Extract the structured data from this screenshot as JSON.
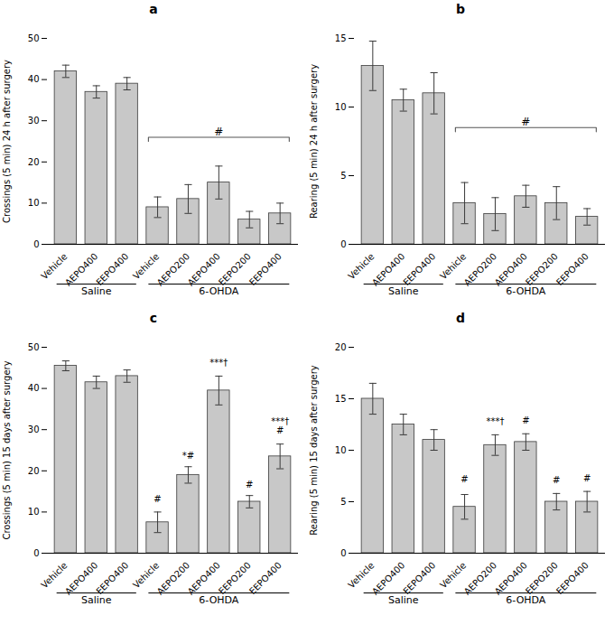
{
  "chart_data": [
    {
      "type": "bar",
      "title": "a",
      "ylabel": "Crossings (5 min) 24 h after surgery",
      "categories": [
        "Vehicle",
        "AEPO400",
        "EEPO400",
        "Vehicle",
        "AEPO200",
        "AEPO400",
        "EEPO200",
        "EEPO400"
      ],
      "values": [
        42.0,
        37.0,
        39.0,
        9.0,
        11.0,
        15.0,
        6.0,
        7.5
      ],
      "errors": [
        1.5,
        1.5,
        1.5,
        2.5,
        3.5,
        4.0,
        2.0,
        2.5
      ],
      "groups": [
        "Saline",
        "Saline",
        "Saline",
        "6-OHDA",
        "6-OHDA",
        "6-OHDA",
        "6-OHDA",
        "6-OHDA"
      ],
      "ylim": [
        0,
        50
      ],
      "yticks": [
        0,
        10,
        20,
        30,
        40,
        50
      ],
      "color": "#c8c8c8",
      "grid": false,
      "annotations": [
        {
          "text": "#",
          "group": "6-OHDA",
          "y": 26
        }
      ]
    },
    {
      "type": "bar",
      "title": "b",
      "ylabel": "Rearing (5 min) 24 h after surgery",
      "categories": [
        "Vehicle",
        "AEPO400",
        "EEPO400",
        "Vehicle",
        "AEPO200",
        "AEPO400",
        "EEPO200",
        "EEPO400"
      ],
      "values": [
        13.0,
        10.5,
        11.0,
        3.0,
        2.2,
        3.5,
        3.0,
        2.0
      ],
      "errors": [
        1.8,
        0.8,
        1.5,
        1.5,
        1.2,
        0.8,
        1.2,
        0.6
      ],
      "groups": [
        "Saline",
        "Saline",
        "Saline",
        "6-OHDA",
        "6-OHDA",
        "6-OHDA",
        "6-OHDA",
        "6-OHDA"
      ],
      "ylim": [
        0,
        15
      ],
      "yticks": [
        0,
        5,
        10,
        15
      ],
      "color": "#c8c8c8",
      "grid": false,
      "annotations": [
        {
          "text": "#",
          "group": "6-OHDA",
          "y": 8.5
        }
      ]
    },
    {
      "type": "bar",
      "title": "c",
      "ylabel": "Crossings (5 min) 15 days after surgery",
      "categories": [
        "Vehicle",
        "AEPO400",
        "EEPO400",
        "Vehicle",
        "AEPO200",
        "AEPO400",
        "EEPO200",
        "EEPO400"
      ],
      "values": [
        45.5,
        41.5,
        43.0,
        7.5,
        19.0,
        39.5,
        12.5,
        23.5
      ],
      "errors": [
        1.2,
        1.5,
        1.5,
        2.5,
        2.0,
        3.5,
        1.5,
        3.0
      ],
      "groups": [
        "Saline",
        "Saline",
        "Saline",
        "6-OHDA",
        "6-OHDA",
        "6-OHDA",
        "6-OHDA",
        "6-OHDA"
      ],
      "ylim": [
        0,
        50
      ],
      "yticks": [
        0,
        10,
        20,
        30,
        40,
        50
      ],
      "color": "#c8c8c8",
      "grid": false,
      "annotations": [
        {
          "text": "#",
          "bar": 3,
          "y": 12.5
        },
        {
          "text": "*#",
          "bar": 4,
          "y": 23
        },
        {
          "text": "***†",
          "bar": 5,
          "y": 45.5
        },
        {
          "text": "#",
          "bar": 6,
          "y": 16
        },
        {
          "text": "***†\n#",
          "bar": 7,
          "y": 29
        }
      ]
    },
    {
      "type": "bar",
      "title": "d",
      "ylabel": "Rearing (5 min) 15 days after surgery",
      "categories": [
        "Vehicle",
        "AEPO400",
        "EEPO400",
        "Vehicle",
        "AEPO200",
        "AEPO400",
        "EEPO200",
        "EEPO400"
      ],
      "values": [
        15.0,
        12.5,
        11.0,
        4.5,
        10.5,
        10.8,
        5.0,
        5.0
      ],
      "errors": [
        1.5,
        1.0,
        1.0,
        1.2,
        1.0,
        0.8,
        0.8,
        1.0
      ],
      "groups": [
        "Saline",
        "Saline",
        "Saline",
        "6-OHDA",
        "6-OHDA",
        "6-OHDA",
        "6-OHDA",
        "6-OHDA"
      ],
      "ylim": [
        0,
        20
      ],
      "yticks": [
        0,
        5,
        10,
        15,
        20
      ],
      "color": "#c8c8c8",
      "grid": false,
      "annotations": [
        {
          "text": "#",
          "bar": 3,
          "y": 6.9
        },
        {
          "text": "***†",
          "bar": 4,
          "y": 12.5
        },
        {
          "text": "#",
          "bar": 5,
          "y": 12.6
        },
        {
          "text": "#",
          "bar": 6,
          "y": 6.8
        },
        {
          "text": "#",
          "bar": 7,
          "y": 7
        }
      ]
    }
  ]
}
